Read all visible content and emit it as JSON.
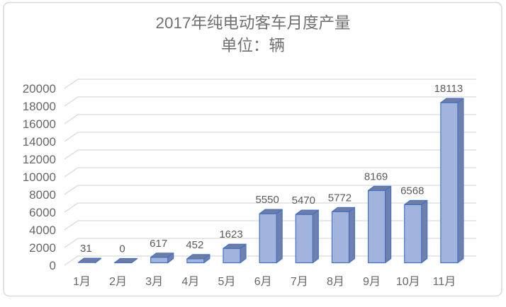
{
  "chart_data": {
    "type": "bar",
    "style": "3d-column",
    "title": "2017年纯电动客车月度产量",
    "subtitle": "单位：辆",
    "categories": [
      "1月",
      "2月",
      "3月",
      "4月",
      "5月",
      "6月",
      "7月",
      "8月",
      "9月",
      "10月",
      "11月"
    ],
    "values": [
      31,
      0,
      617,
      452,
      1623,
      5550,
      5470,
      5772,
      8169,
      6568,
      18113
    ],
    "value_labels": [
      "31",
      "0",
      "617",
      "452",
      "1623",
      "5550",
      "5470",
      "5772",
      "8169",
      "6568",
      "18113"
    ],
    "ylim": [
      0,
      20000
    ],
    "ytick_step": 2000,
    "yticks": [
      "0",
      "2000",
      "4000",
      "6000",
      "8000",
      "10000",
      "12000",
      "14000",
      "16000",
      "18000",
      "20000"
    ],
    "grid": true,
    "legend": "none",
    "xlabel": "",
    "ylabel": "",
    "colors": {
      "bar_front": "#A2B4DE",
      "bar_top": "#6E7CA4",
      "bar_side": "#6F80AC",
      "bar_outline": "#4472C4",
      "gridline": "#D9D9D9",
      "axis_text": "#666666",
      "value_label_text": "#5A5A5A",
      "title_text": "#707070",
      "border": "#D9D9D9",
      "background": "#FFFFFF"
    }
  }
}
